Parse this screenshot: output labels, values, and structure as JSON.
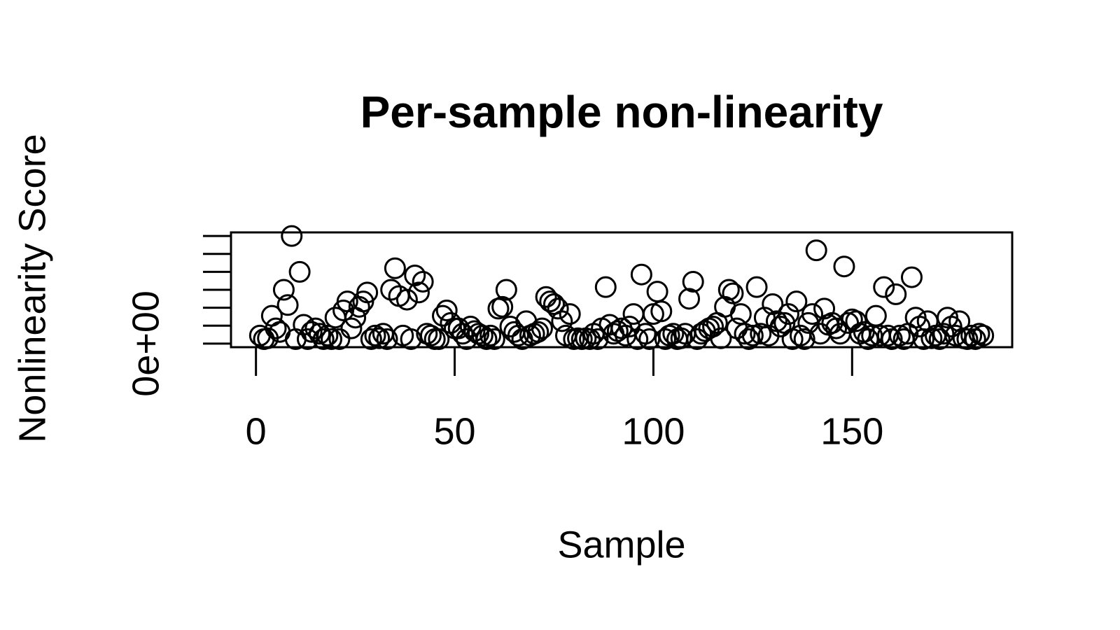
{
  "chart_data": {
    "type": "scatter",
    "title": "Per-sample non-linearity",
    "x_label": "Sample",
    "y_label": "Nonlinearity Score",
    "x": [
      1,
      2,
      3,
      4,
      5,
      6,
      7,
      8,
      9,
      10,
      11,
      12,
      13,
      14,
      15,
      16,
      17,
      18,
      19,
      20,
      21,
      22,
      23,
      24,
      25,
      26,
      27,
      28,
      29,
      30,
      31,
      32,
      33,
      34,
      35,
      36,
      37,
      38,
      39,
      40,
      41,
      42,
      43,
      44,
      45,
      46,
      47,
      48,
      49,
      50,
      51,
      52,
      53,
      54,
      55,
      56,
      57,
      58,
      59,
      60,
      61,
      62,
      63,
      64,
      65,
      66,
      67,
      68,
      69,
      70,
      71,
      72,
      73,
      74,
      75,
      76,
      77,
      78,
      79,
      80,
      81,
      82,
      83,
      84,
      85,
      86,
      87,
      88,
      89,
      90,
      91,
      92,
      93,
      94,
      95,
      96,
      97,
      98,
      99,
      100,
      101,
      102,
      103,
      104,
      105,
      106,
      107,
      108,
      109,
      110,
      111,
      112,
      113,
      114,
      115,
      116,
      117,
      118,
      119,
      120,
      121,
      122,
      123,
      124,
      125,
      126,
      127,
      128,
      129,
      130,
      131,
      132,
      133,
      134,
      135,
      136,
      137,
      138,
      139,
      140,
      141,
      142,
      143,
      144,
      145,
      146,
      147,
      148,
      149,
      150,
      151,
      152,
      153,
      154,
      155,
      156,
      157,
      158,
      159,
      160,
      161,
      162,
      163,
      164,
      165,
      166,
      167,
      168,
      169,
      170,
      171,
      172,
      173,
      174,
      175,
      176,
      177,
      178,
      179,
      180,
      181,
      182,
      183
    ],
    "values": [
      0.45,
      0.25,
      0.3,
      1.55,
      0.85,
      0.65,
      3.0,
      2.15,
      6.0,
      0.25,
      4.0,
      1.05,
      0.25,
      0.65,
      0.85,
      0.55,
      0.25,
      0.45,
      0.25,
      1.45,
      0.25,
      1.85,
      2.35,
      0.85,
      1.45,
      2.05,
      2.35,
      2.85,
      0.25,
      0.45,
      0.3,
      0.55,
      0.25,
      3.0,
      4.2,
      2.65,
      0.45,
      2.45,
      0.25,
      3.8,
      2.85,
      3.45,
      0.55,
      0.45,
      0.25,
      0.25,
      1.55,
      1.85,
      1.15,
      0.85,
      0.85,
      0.55,
      0.25,
      0.95,
      0.7,
      0.55,
      0.45,
      0.25,
      0.45,
      0.25,
      1.95,
      2.05,
      3.0,
      0.95,
      0.65,
      0.45,
      0.25,
      1.25,
      0.45,
      0.55,
      0.65,
      0.85,
      2.6,
      2.35,
      2.2,
      1.95,
      1.25,
      0.45,
      1.65,
      0.25,
      0.3,
      0.25,
      0.3,
      0.25,
      0.55,
      0.25,
      0.85,
      3.15,
      1.05,
      0.55,
      0.7,
      0.85,
      0.45,
      0.95,
      1.65,
      0.25,
      3.85,
      0.55,
      0.25,
      1.65,
      2.9,
      1.8,
      0.25,
      0.45,
      0.55,
      0.25,
      0.3,
      0.55,
      2.5,
      3.45,
      0.25,
      0.55,
      0.7,
      0.85,
      0.95,
      1.15,
      0.3,
      2.05,
      3.0,
      2.8,
      0.85,
      1.65,
      0.55,
      0.25,
      0.45,
      3.15,
      0.55,
      1.45,
      0.45,
      2.2,
      1.25,
      0.95,
      1.15,
      1.65,
      0.25,
      2.35,
      0.45,
      0.25,
      1.15,
      1.65,
      5.2,
      0.55,
      1.95,
      1.05,
      1.15,
      0.85,
      0.55,
      4.3,
      1.15,
      1.35,
      1.25,
      0.55,
      0.65,
      0.25,
      0.45,
      1.55,
      0.45,
      3.15,
      0.45,
      0.25,
      2.75,
      0.45,
      0.25,
      0.55,
      3.7,
      1.45,
      0.95,
      0.25,
      1.25,
      0.3,
      0.45,
      0.25,
      0.55,
      1.45,
      0.95,
      0.45,
      1.25,
      0.3,
      0.25,
      0.45,
      0.25,
      0.55,
      0.45
    ],
    "color": "#000000",
    "xlim": [
      -6.28,
      190.28
    ],
    "xticks": [
      0,
      50,
      100,
      150
    ],
    "ylim": [
      -0.2,
      6.2
    ],
    "yticks": [
      {
        "value": 0,
        "label": "0e+00"
      }
    ],
    "yminor_ticks": [
      1,
      2,
      3,
      4,
      5,
      6
    ]
  }
}
